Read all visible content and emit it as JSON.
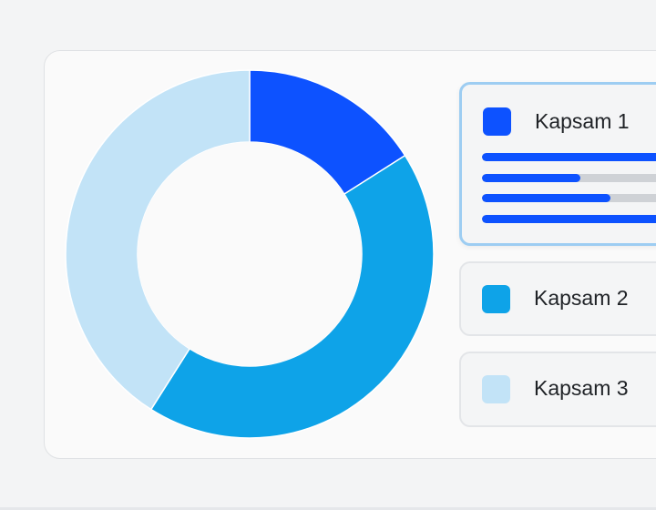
{
  "chart_data": {
    "type": "pie",
    "categories": [
      "Kapsam 1",
      "Kapsam 2",
      "Kapsam 3"
    ],
    "values": [
      16,
      43,
      41
    ],
    "colors": [
      "#0d52ff",
      "#0ea3e8",
      "#c2e3f7"
    ],
    "donut": true
  },
  "legend": {
    "items": [
      {
        "label": "Kapsam 1",
        "color": "#0d52ff",
        "active": true,
        "progress": [
          1.0,
          0.49,
          0.64,
          1.0
        ]
      },
      {
        "label": "Kapsam 2",
        "color": "#0ea3e8",
        "active": false
      },
      {
        "label": "Kapsam 3",
        "color": "#c2e3f7",
        "active": false
      }
    ]
  }
}
